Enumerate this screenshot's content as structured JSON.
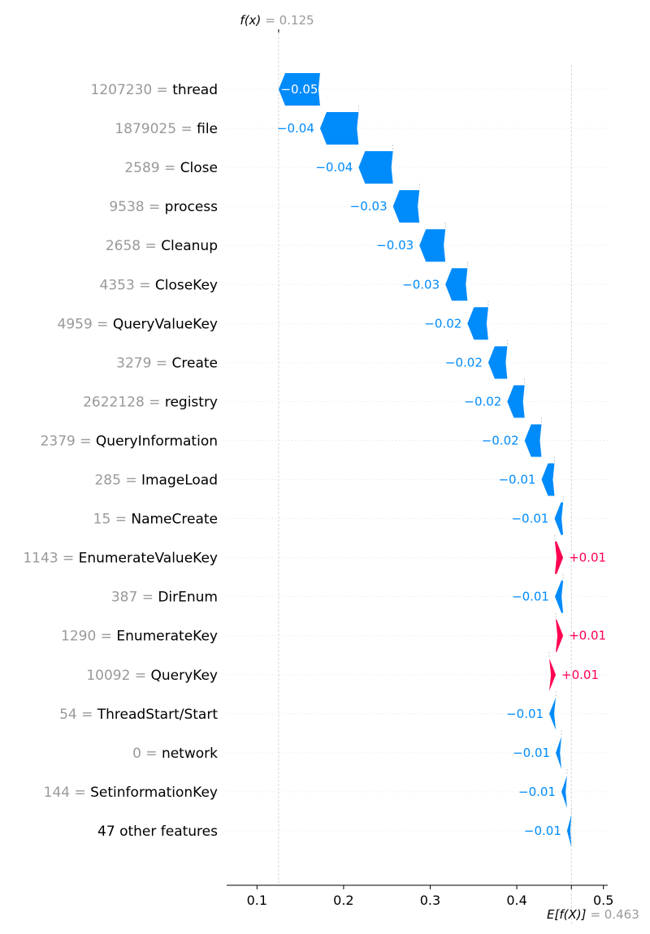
{
  "chart_data": {
    "type": "waterfall",
    "fx_label": "f(x)",
    "fx_value": "= 0.125",
    "fx": 0.125,
    "base_label": "E[f(X)]",
    "base_value": "= 0.463",
    "base": 0.463,
    "xlim": [
      0.065,
      0.505
    ],
    "x_ticks": [
      0.1,
      0.2,
      0.3,
      0.4,
      0.5
    ],
    "x_tick_labels": [
      "0.1",
      "0.2",
      "0.3",
      "0.4",
      "0.5"
    ],
    "colors": {
      "positive": "#ff0051",
      "negative": "#008bfb",
      "feature_value": "#999999"
    },
    "features": [
      {
        "value": "1207230",
        "eq": "=",
        "name": "thread",
        "shap": -0.0478,
        "display": "−0.05",
        "start": 0.1728,
        "end": 0.125
      },
      {
        "value": "1879025",
        "eq": "=",
        "name": "file",
        "shap": -0.0445,
        "display": "−0.04",
        "start": 0.2173,
        "end": 0.1728
      },
      {
        "value": "2589",
        "eq": "=",
        "name": "Close",
        "shap": -0.0397,
        "display": "−0.04",
        "start": 0.257,
        "end": 0.2173
      },
      {
        "value": "9538",
        "eq": "=",
        "name": "process",
        "shap": -0.0305,
        "display": "−0.03",
        "start": 0.2875,
        "end": 0.257
      },
      {
        "value": "2658",
        "eq": "=",
        "name": "Cleanup",
        "shap": -0.03,
        "display": "−0.03",
        "start": 0.3175,
        "end": 0.2875
      },
      {
        "value": "4353",
        "eq": "=",
        "name": "CloseKey",
        "shap": -0.0255,
        "display": "−0.03",
        "start": 0.343,
        "end": 0.3175
      },
      {
        "value": "4959",
        "eq": "=",
        "name": "QueryValueKey",
        "shap": -0.024,
        "display": "−0.02",
        "start": 0.367,
        "end": 0.343
      },
      {
        "value": "3279",
        "eq": "=",
        "name": "Create",
        "shap": -0.022,
        "display": "−0.02",
        "start": 0.389,
        "end": 0.367
      },
      {
        "value": "2622128",
        "eq": "=",
        "name": "registry",
        "shap": -0.02,
        "display": "−0.02",
        "start": 0.409,
        "end": 0.389
      },
      {
        "value": "2379",
        "eq": "=",
        "name": "QueryInformation",
        "shap": -0.0195,
        "display": "−0.02",
        "start": 0.4285,
        "end": 0.409
      },
      {
        "value": "285",
        "eq": "=",
        "name": "ImageLoad",
        "shap": -0.015,
        "display": "−0.01",
        "start": 0.4435,
        "end": 0.4285
      },
      {
        "value": "15",
        "eq": "=",
        "name": "NameCreate",
        "shap": -0.01,
        "display": "−0.01",
        "start": 0.4535,
        "end": 0.4435
      },
      {
        "value": "1143",
        "eq": "=",
        "name": "EnumerateValueKey",
        "shap": 0.0095,
        "display": "+0.01",
        "start": 0.444,
        "end": 0.4535
      },
      {
        "value": "387",
        "eq": "=",
        "name": "DirEnum",
        "shap": -0.0095,
        "display": "−0.01",
        "start": 0.4535,
        "end": 0.444
      },
      {
        "value": "1290",
        "eq": "=",
        "name": "EnumerateKey",
        "shap": 0.0085,
        "display": "+0.01",
        "start": 0.445,
        "end": 0.4535
      },
      {
        "value": "10092",
        "eq": "=",
        "name": "QueryKey",
        "shap": 0.0075,
        "display": "+0.01",
        "start": 0.4375,
        "end": 0.445
      },
      {
        "value": "54",
        "eq": "=",
        "name": "ThreadStart/Start",
        "shap": -0.0075,
        "display": "−0.01",
        "start": 0.445,
        "end": 0.4375
      },
      {
        "value": "0",
        "eq": "=",
        "name": "network",
        "shap": -0.0065,
        "display": "−0.01",
        "start": 0.4515,
        "end": 0.445
      },
      {
        "value": "144",
        "eq": "=",
        "name": "SetinformationKey",
        "shap": -0.0065,
        "display": "−0.01",
        "start": 0.458,
        "end": 0.4515
      },
      {
        "value": "",
        "eq": "",
        "name": "47 other features",
        "shap": -0.005,
        "display": "−0.01",
        "start": 0.463,
        "end": 0.458
      }
    ]
  }
}
